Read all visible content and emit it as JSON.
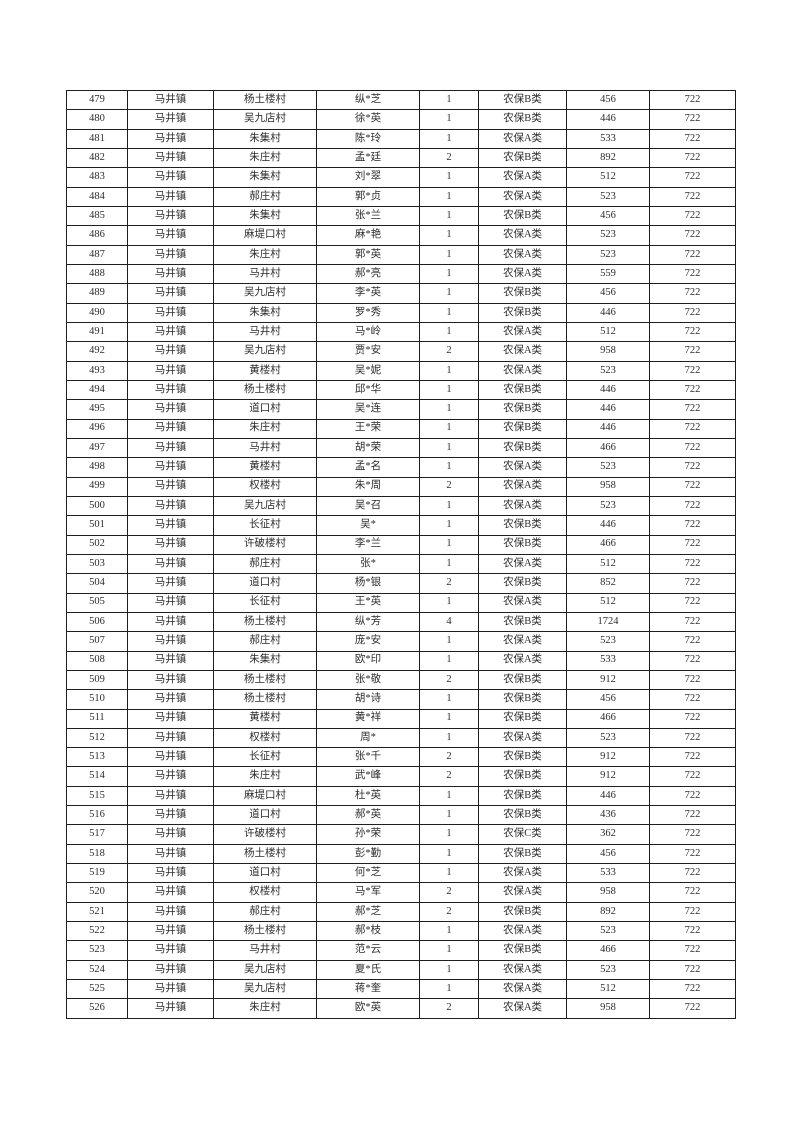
{
  "colors": {
    "page_background": "#ffffff",
    "table_border": "#1f1f1f",
    "text": "#2d2d2d"
  },
  "table": {
    "column_names": [
      "serial-number",
      "town",
      "village",
      "person-name",
      "person-count",
      "pension-category",
      "amount",
      "standard"
    ],
    "rows": [
      [
        "479",
        "马井镇",
        "杨土楼村",
        "纵*芝",
        "1",
        "农保B类",
        "456",
        "722"
      ],
      [
        "480",
        "马井镇",
        "吴九店村",
        "徐*英",
        "1",
        "农保B类",
        "446",
        "722"
      ],
      [
        "481",
        "马井镇",
        "朱集村",
        "陈*玲",
        "1",
        "农保A类",
        "533",
        "722"
      ],
      [
        "482",
        "马井镇",
        "朱庄村",
        "孟*廷",
        "2",
        "农保B类",
        "892",
        "722"
      ],
      [
        "483",
        "马井镇",
        "朱集村",
        "刘*翠",
        "1",
        "农保A类",
        "512",
        "722"
      ],
      [
        "484",
        "马井镇",
        "郝庄村",
        "郭*贞",
        "1",
        "农保A类",
        "523",
        "722"
      ],
      [
        "485",
        "马井镇",
        "朱集村",
        "张*兰",
        "1",
        "农保B类",
        "456",
        "722"
      ],
      [
        "486",
        "马井镇",
        "麻堤口村",
        "麻*艳",
        "1",
        "农保A类",
        "523",
        "722"
      ],
      [
        "487",
        "马井镇",
        "朱庄村",
        "郭*英",
        "1",
        "农保A类",
        "523",
        "722"
      ],
      [
        "488",
        "马井镇",
        "马井村",
        "郝*亮",
        "1",
        "农保A类",
        "559",
        "722"
      ],
      [
        "489",
        "马井镇",
        "吴九店村",
        "李*英",
        "1",
        "农保B类",
        "456",
        "722"
      ],
      [
        "490",
        "马井镇",
        "朱集村",
        "罗*秀",
        "1",
        "农保B类",
        "446",
        "722"
      ],
      [
        "491",
        "马井镇",
        "马井村",
        "马*岭",
        "1",
        "农保A类",
        "512",
        "722"
      ],
      [
        "492",
        "马井镇",
        "吴九店村",
        "贾*安",
        "2",
        "农保A类",
        "958",
        "722"
      ],
      [
        "493",
        "马井镇",
        "黄楼村",
        "吴*妮",
        "1",
        "农保A类",
        "523",
        "722"
      ],
      [
        "494",
        "马井镇",
        "杨土楼村",
        "邱*华",
        "1",
        "农保B类",
        "446",
        "722"
      ],
      [
        "495",
        "马井镇",
        "道口村",
        "吴*连",
        "1",
        "农保B类",
        "446",
        "722"
      ],
      [
        "496",
        "马井镇",
        "朱庄村",
        "王*荣",
        "1",
        "农保B类",
        "446",
        "722"
      ],
      [
        "497",
        "马井镇",
        "马井村",
        "胡*荣",
        "1",
        "农保B类",
        "466",
        "722"
      ],
      [
        "498",
        "马井镇",
        "黄楼村",
        "孟*名",
        "1",
        "农保A类",
        "523",
        "722"
      ],
      [
        "499",
        "马井镇",
        "权楼村",
        "朱*周",
        "2",
        "农保A类",
        "958",
        "722"
      ],
      [
        "500",
        "马井镇",
        "吴九店村",
        "吴*召",
        "1",
        "农保A类",
        "523",
        "722"
      ],
      [
        "501",
        "马井镇",
        "长征村",
        "吴*",
        "1",
        "农保B类",
        "446",
        "722"
      ],
      [
        "502",
        "马井镇",
        "许破楼村",
        "李*兰",
        "1",
        "农保B类",
        "466",
        "722"
      ],
      [
        "503",
        "马井镇",
        "郝庄村",
        "张*",
        "1",
        "农保A类",
        "512",
        "722"
      ],
      [
        "504",
        "马井镇",
        "道口村",
        "杨*银",
        "2",
        "农保B类",
        "852",
        "722"
      ],
      [
        "505",
        "马井镇",
        "长征村",
        "王*英",
        "1",
        "农保A类",
        "512",
        "722"
      ],
      [
        "506",
        "马井镇",
        "杨土楼村",
        "纵*芳",
        "4",
        "农保B类",
        "1724",
        "722"
      ],
      [
        "507",
        "马井镇",
        "郝庄村",
        "庞*安",
        "1",
        "农保A类",
        "523",
        "722"
      ],
      [
        "508",
        "马井镇",
        "朱集村",
        "欧*印",
        "1",
        "农保A类",
        "533",
        "722"
      ],
      [
        "509",
        "马井镇",
        "杨土楼村",
        "张*敬",
        "2",
        "农保B类",
        "912",
        "722"
      ],
      [
        "510",
        "马井镇",
        "杨土楼村",
        "胡*诗",
        "1",
        "农保B类",
        "456",
        "722"
      ],
      [
        "511",
        "马井镇",
        "黄楼村",
        "黄*祥",
        "1",
        "农保B类",
        "466",
        "722"
      ],
      [
        "512",
        "马井镇",
        "权楼村",
        "周*",
        "1",
        "农保A类",
        "523",
        "722"
      ],
      [
        "513",
        "马井镇",
        "长征村",
        "张*千",
        "2",
        "农保B类",
        "912",
        "722"
      ],
      [
        "514",
        "马井镇",
        "朱庄村",
        "武*峰",
        "2",
        "农保B类",
        "912",
        "722"
      ],
      [
        "515",
        "马井镇",
        "麻堤口村",
        "杜*英",
        "1",
        "农保B类",
        "446",
        "722"
      ],
      [
        "516",
        "马井镇",
        "道口村",
        "郝*英",
        "1",
        "农保B类",
        "436",
        "722"
      ],
      [
        "517",
        "马井镇",
        "许破楼村",
        "孙*荣",
        "1",
        "农保C类",
        "362",
        "722"
      ],
      [
        "518",
        "马井镇",
        "杨土楼村",
        "彭*勤",
        "1",
        "农保B类",
        "456",
        "722"
      ],
      [
        "519",
        "马井镇",
        "道口村",
        "何*芝",
        "1",
        "农保A类",
        "533",
        "722"
      ],
      [
        "520",
        "马井镇",
        "权楼村",
        "马*军",
        "2",
        "农保A类",
        "958",
        "722"
      ],
      [
        "521",
        "马井镇",
        "郝庄村",
        "郝*芝",
        "2",
        "农保B类",
        "892",
        "722"
      ],
      [
        "522",
        "马井镇",
        "杨土楼村",
        "郝*枝",
        "1",
        "农保A类",
        "523",
        "722"
      ],
      [
        "523",
        "马井镇",
        "马井村",
        "范*云",
        "1",
        "农保B类",
        "466",
        "722"
      ],
      [
        "524",
        "马井镇",
        "吴九店村",
        "夏*氏",
        "1",
        "农保A类",
        "523",
        "722"
      ],
      [
        "525",
        "马井镇",
        "吴九店村",
        "蒋*奎",
        "1",
        "农保A类",
        "512",
        "722"
      ],
      [
        "526",
        "马井镇",
        "朱庄村",
        "欧*英",
        "2",
        "农保A类",
        "958",
        "722"
      ]
    ]
  }
}
